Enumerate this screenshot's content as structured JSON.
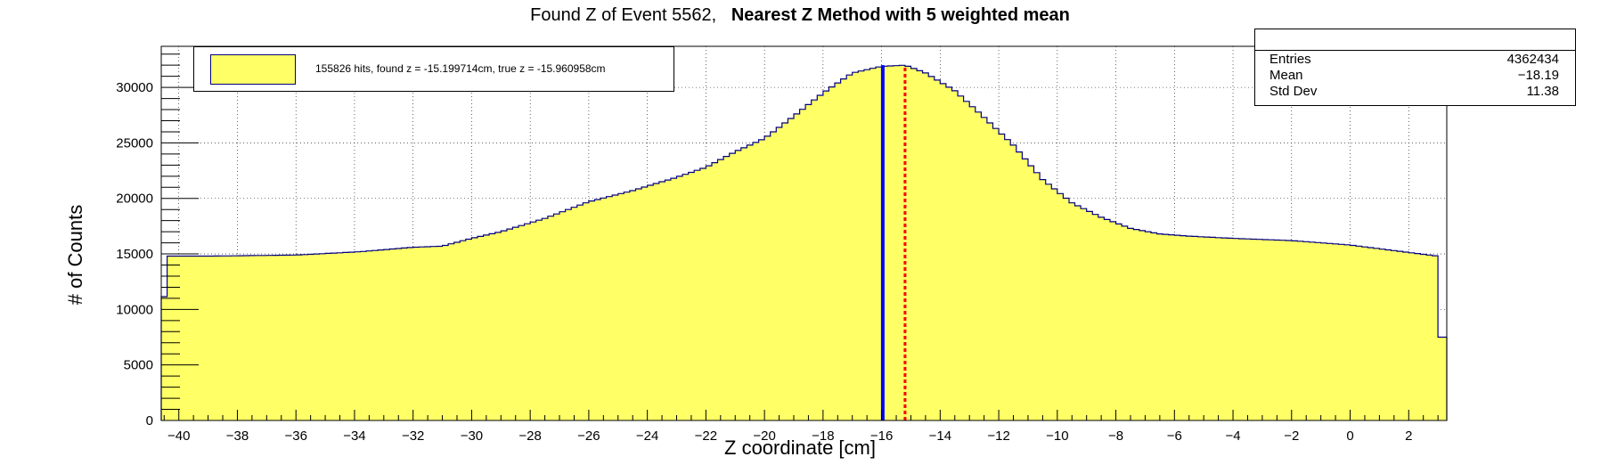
{
  "title": {
    "prefix": "Found Z of Event 5562,",
    "bold": "Nearest Z Method with 5 weighted mean"
  },
  "legend": {
    "text": "155826 hits, found z = -15.199714cm, true z = -15.960958cm"
  },
  "stats": {
    "entries_label": "Entries",
    "entries_value": "4362434",
    "mean_label": "Mean",
    "mean_value": "−18.19",
    "std_label": "Std Dev",
    "std_value": "11.38"
  },
  "colors": {
    "fill": "#ffff66",
    "outline": "#000080",
    "true_line": "#0000ff",
    "found_line": "#ff0000"
  },
  "chart_data": {
    "type": "histogram",
    "xlabel": "Z coordinate [cm]",
    "ylabel": "# of Counts",
    "xlim": [
      -40.6,
      3.3
    ],
    "ylim": [
      0,
      33700
    ],
    "grid": true,
    "legend_position": "top-left",
    "xticks": [
      -40,
      -38,
      -36,
      -34,
      -32,
      -30,
      -28,
      -26,
      -24,
      -22,
      -20,
      -18,
      -16,
      -14,
      -12,
      -10,
      -8,
      -6,
      -4,
      -2,
      0,
      2
    ],
    "yticks": [
      0,
      5000,
      10000,
      15000,
      20000,
      25000,
      30000
    ],
    "profile": [
      [
        -40.6,
        7500
      ],
      [
        -40.4,
        14800
      ],
      [
        -39,
        14800
      ],
      [
        -36,
        14900
      ],
      [
        -33.8,
        15200
      ],
      [
        -32,
        15600
      ],
      [
        -31,
        15700
      ],
      [
        -30,
        16400
      ],
      [
        -29,
        17000
      ],
      [
        -27.5,
        18200
      ],
      [
        -26,
        19700
      ],
      [
        -24.5,
        20700
      ],
      [
        -23,
        21900
      ],
      [
        -22,
        22800
      ],
      [
        -21,
        24200
      ],
      [
        -20,
        25400
      ],
      [
        -19,
        27400
      ],
      [
        -18,
        29500
      ],
      [
        -17,
        31300
      ],
      [
        -16,
        31900
      ],
      [
        -15.2,
        32000
      ],
      [
        -14.5,
        31300
      ],
      [
        -13.5,
        29700
      ],
      [
        -12.5,
        27300
      ],
      [
        -11.5,
        24800
      ],
      [
        -10.5,
        21700
      ],
      [
        -9.5,
        19600
      ],
      [
        -8.5,
        18300
      ],
      [
        -7.5,
        17300
      ],
      [
        -6.5,
        16800
      ],
      [
        -5.5,
        16600
      ],
      [
        -4,
        16400
      ],
      [
        -2,
        16200
      ],
      [
        0,
        15800
      ],
      [
        1.5,
        15300
      ],
      [
        3,
        14800
      ],
      [
        3.1,
        7500
      ],
      [
        3.3,
        7500
      ]
    ],
    "true_z": -15.960958,
    "true_z_height": 32000,
    "found_z": -15.199714,
    "found_z_height": 32000
  }
}
